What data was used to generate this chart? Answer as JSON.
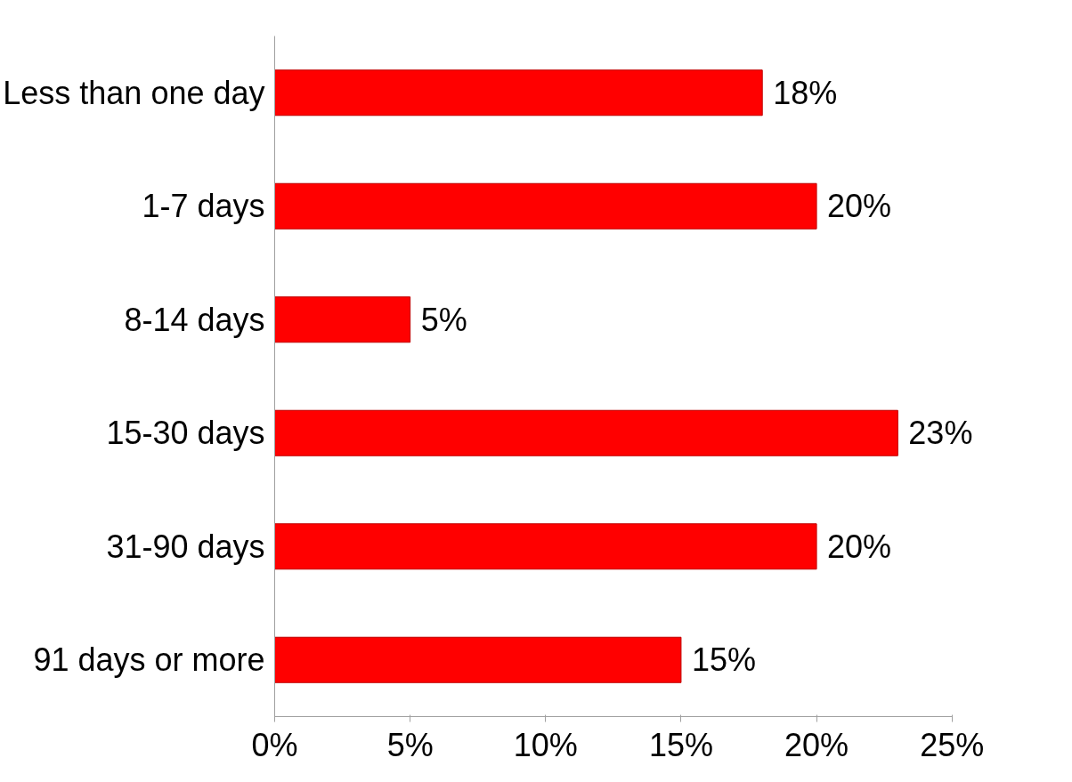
{
  "chart_data": {
    "type": "bar",
    "orientation": "horizontal",
    "categories": [
      "Less than one day",
      "1-7 days",
      "8-14 days",
      "15-30 days",
      "31-90 days",
      "91 days or more"
    ],
    "values": [
      18,
      20,
      5,
      23,
      20,
      15
    ],
    "value_labels": [
      "18%",
      "20%",
      "5%",
      "23%",
      "20%",
      "15%"
    ],
    "color": "#ff0000",
    "xlim": [
      0,
      25
    ],
    "xticks": [
      {
        "value": 0,
        "label": "0%"
      },
      {
        "value": 5,
        "label": "5%"
      },
      {
        "value": 10,
        "label": "10%"
      },
      {
        "value": 15,
        "label": "15%"
      },
      {
        "value": 20,
        "label": "20%"
      },
      {
        "value": 25,
        "label": "25%"
      }
    ],
    "grid": false
  }
}
